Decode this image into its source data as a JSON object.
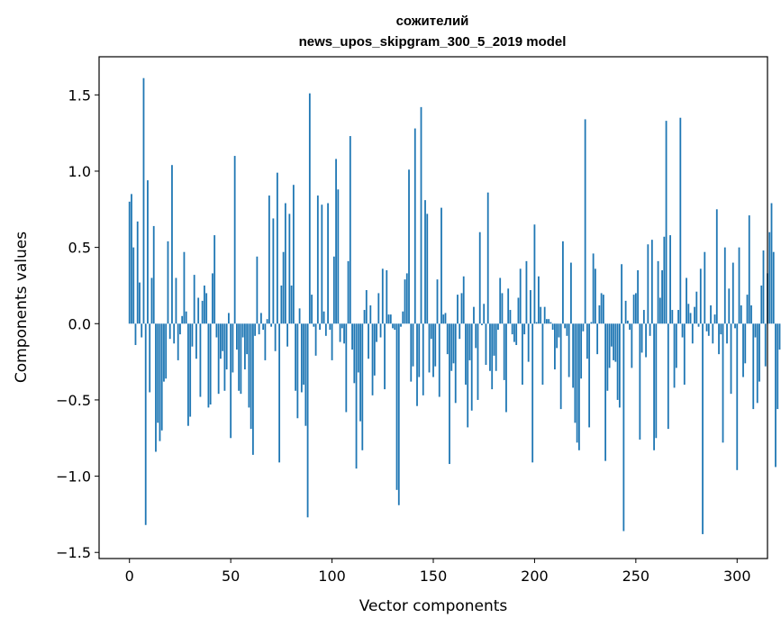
{
  "chart_data": {
    "type": "bar",
    "title": "сожителий",
    "subtitle": "news_upos_skipgram_300_5_2019 model",
    "xlabel": "Vector components",
    "ylabel": "Components values",
    "xlim": [
      -15,
      315
    ],
    "ylim": [
      -1.54,
      1.75
    ],
    "xticks": [
      0,
      50,
      100,
      150,
      200,
      250,
      300
    ],
    "yticks": [
      -1.5,
      -1.0,
      -0.5,
      0.0,
      0.5,
      1.0,
      1.5
    ],
    "xtick_labels": [
      "0",
      "50",
      "100",
      "150",
      "200",
      "250",
      "300"
    ],
    "ytick_labels": [
      "−1.5",
      "−1.0",
      "−0.5",
      "0.0",
      "0.5",
      "1.0",
      "1.5"
    ],
    "bar_color": "#1f77b4",
    "grid": false,
    "values": [
      0.8,
      0.85,
      0.5,
      -0.14,
      0.67,
      0.27,
      -0.09,
      1.61,
      -1.32,
      0.94,
      -0.45,
      0.3,
      0.64,
      -0.84,
      -0.65,
      -0.77,
      -0.7,
      -0.38,
      -0.36,
      0.54,
      -0.1,
      1.04,
      -0.13,
      0.3,
      -0.24,
      -0.07,
      0.05,
      0.47,
      0.08,
      -0.67,
      -0.61,
      -0.15,
      0.32,
      -0.23,
      0.17,
      -0.48,
      0.15,
      0.25,
      0.2,
      -0.55,
      -0.53,
      0.33,
      0.58,
      -0.09,
      -0.46,
      -0.23,
      -0.18,
      -0.44,
      -0.3,
      0.07,
      -0.75,
      -0.32,
      1.1,
      -0.17,
      -0.44,
      -0.46,
      -0.09,
      -0.3,
      -0.2,
      -0.55,
      -0.69,
      -0.86,
      -0.08,
      0.44,
      -0.07,
      0.07,
      -0.04,
      -0.24,
      0.03,
      0.84,
      -0.02,
      0.69,
      -0.18,
      0.99,
      -0.91,
      0.25,
      0.47,
      0.79,
      -0.15,
      0.72,
      0.25,
      0.91,
      -0.44,
      -0.62,
      0.1,
      -0.45,
      -0.4,
      -0.67,
      -1.27,
      1.51,
      0.19,
      -0.02,
      -0.21,
      0.84,
      -0.04,
      0.78,
      0.08,
      -0.08,
      0.79,
      -0.04,
      -0.24,
      0.44,
      1.08,
      0.88,
      -0.12,
      -0.03,
      -0.13,
      -0.58,
      0.41,
      1.23,
      -0.17,
      -0.39,
      -0.95,
      -0.32,
      -0.64,
      -0.83,
      0.09,
      0.22,
      -0.23,
      0.12,
      -0.47,
      -0.34,
      -0.12,
      0.2,
      -0.09,
      0.36,
      -0.43,
      0.35,
      0.06,
      0.06,
      -0.03,
      -0.04,
      -1.09,
      -1.19,
      -0.02,
      0.08,
      0.29,
      0.33,
      1.01,
      -0.38,
      -0.28,
      1.28,
      -0.54,
      -0.35,
      1.42,
      -0.47,
      0.81,
      0.72,
      -0.32,
      -0.1,
      -0.35,
      -0.28,
      0.29,
      -0.48,
      0.76,
      0.06,
      0.07,
      -0.2,
      -0.92,
      -0.31,
      -0.26,
      -0.52,
      0.19,
      -0.1,
      0.2,
      0.31,
      -0.4,
      -0.68,
      -0.24,
      -0.57,
      0.11,
      -0.16,
      -0.5,
      0.6,
      -0.01,
      0.13,
      -0.27,
      0.86,
      -0.31,
      -0.43,
      -0.21,
      -0.31,
      -0.04,
      0.3,
      0.2,
      -0.37,
      -0.58,
      0.23,
      0.09,
      -0.07,
      -0.12,
      -0.14,
      0.17,
      0.36,
      -0.4,
      -0.07,
      0.41,
      -0.25,
      0.22,
      -0.91,
      0.65,
      0.01,
      0.31,
      0.11,
      -0.4,
      0.11,
      0.03,
      0.03,
      0.01,
      -0.04,
      -0.3,
      -0.16,
      -0.09,
      -0.56,
      0.54,
      -0.03,
      -0.08,
      -0.35,
      0.4,
      -0.42,
      -0.65,
      -0.78,
      -0.83,
      -0.36,
      -0.05,
      1.34,
      -0.23,
      -0.68,
      0.01,
      0.46,
      0.36,
      -0.2,
      0.12,
      0.2,
      0.19,
      -0.9,
      -0.44,
      -0.29,
      -0.15,
      -0.24,
      -0.25,
      -0.5,
      -0.55,
      0.39,
      -1.36,
      0.15,
      0.02,
      -0.04,
      -0.29,
      0.19,
      0.2,
      0.35,
      -0.76,
      -0.19,
      0.09,
      -0.22,
      0.52,
      -0.08,
      0.55,
      -0.83,
      -0.75,
      0.41,
      0.17,
      0.35,
      0.57,
      1.33,
      -0.69,
      0.58,
      0.09,
      -0.42,
      -0.29,
      0.09,
      1.35,
      -0.09,
      -0.4,
      0.3,
      0.13,
      0.07,
      -0.13,
      0.11,
      0.21,
      -0.02,
      0.36,
      -1.38,
      0.47,
      -0.05,
      -0.08,
      0.12,
      -0.13,
      0.06,
      0.75,
      -0.2,
      -0.07,
      -0.78,
      0.5,
      -0.13,
      0.23,
      -0.46,
      0.4,
      -0.03,
      -0.96,
      0.5,
      0.12,
      -0.35,
      -0.26,
      0.19,
      0.71,
      0.12,
      -0.56,
      -0.09,
      -0.52,
      -0.38,
      0.25,
      0.48,
      -0.28,
      0.33,
      0.6,
      0.79,
      0.47,
      -0.94,
      -0.56,
      -0.17
    ]
  }
}
